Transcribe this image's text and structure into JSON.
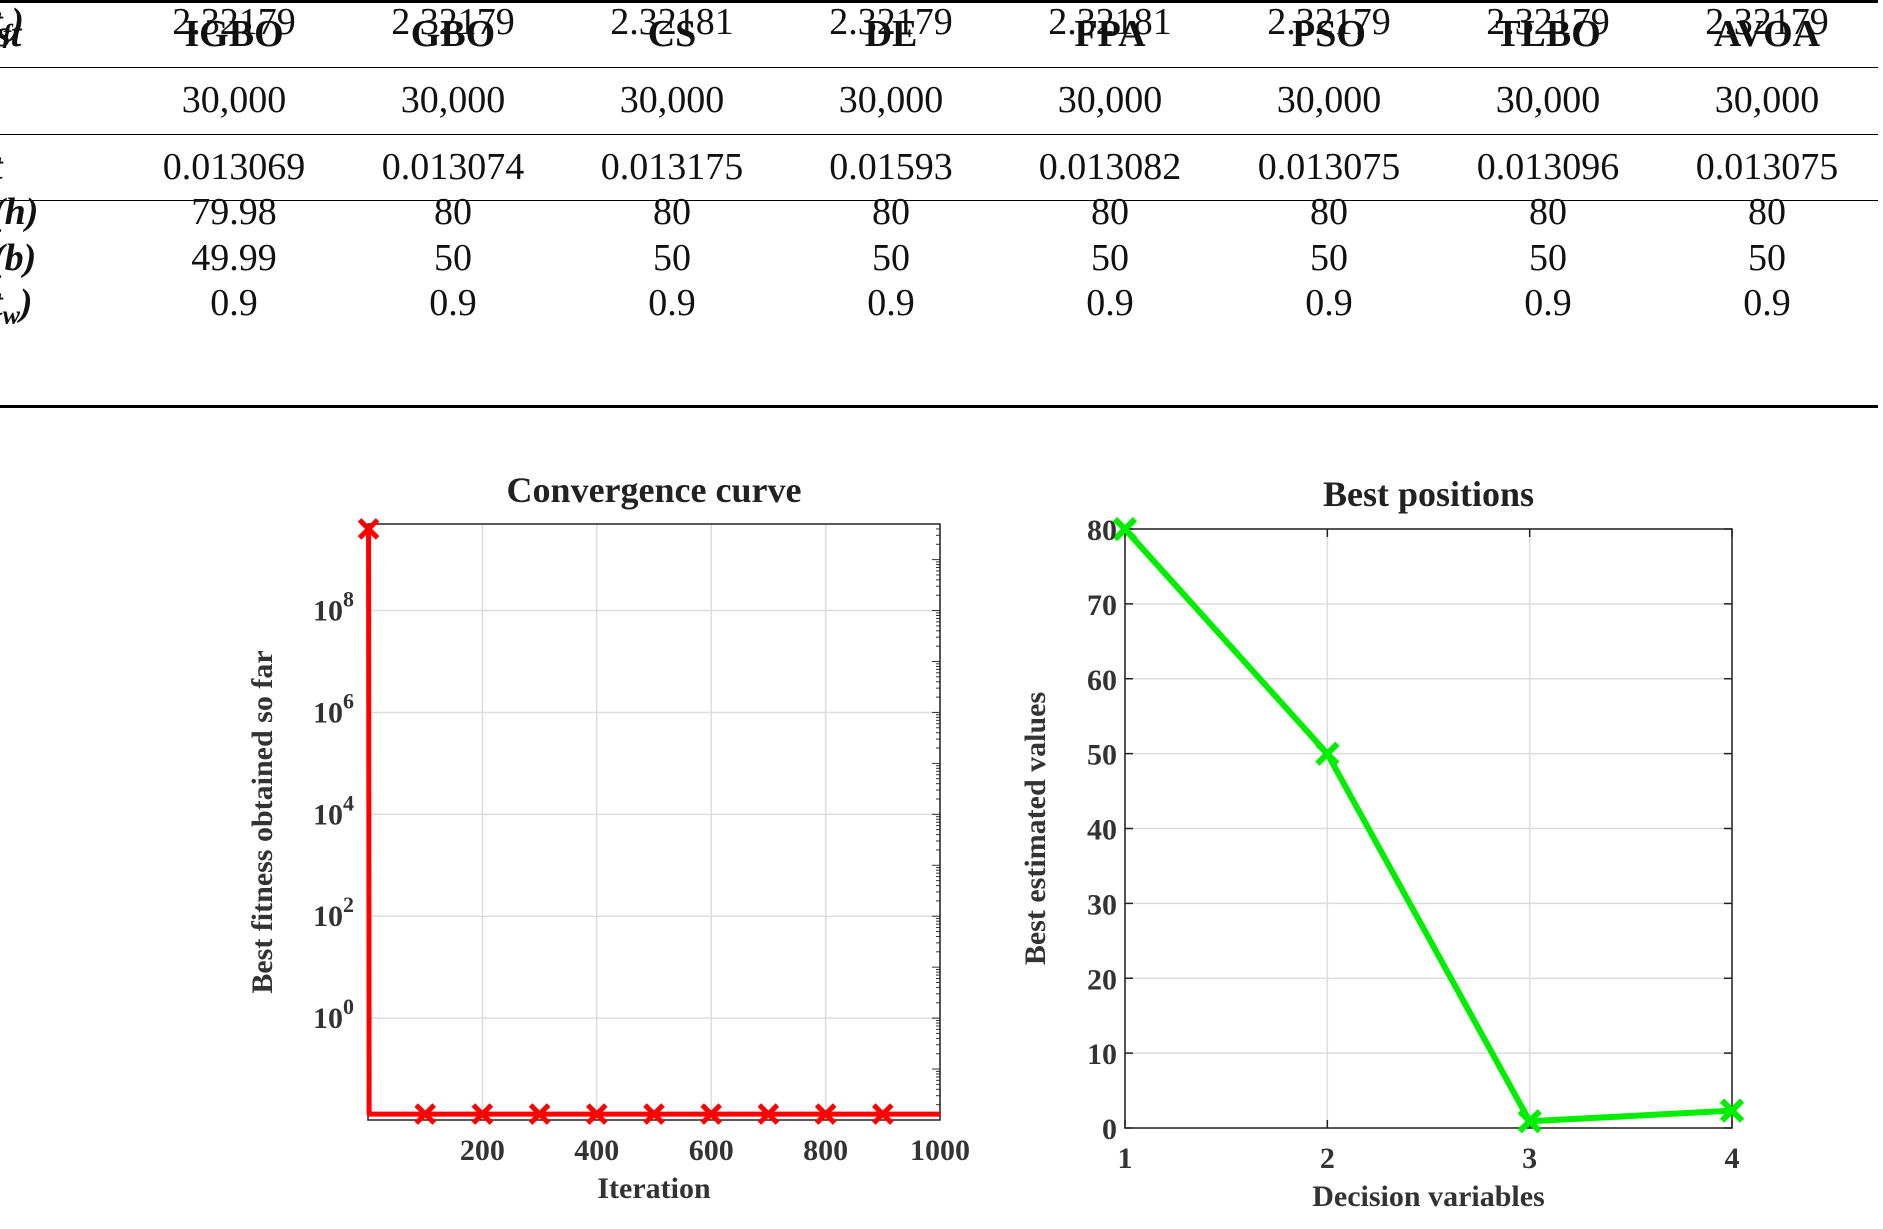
{
  "table": {
    "corner": "st",
    "columns": [
      "IGBO",
      "GBO",
      "CS",
      "DE",
      "FPA",
      "PSO",
      "TLBO",
      "AVOA"
    ],
    "rows": [
      {
        "label": "",
        "values": [
          "30,000",
          "30,000",
          "30,000",
          "30,000",
          "30,000",
          "30,000",
          "30,000",
          "30,000"
        ]
      },
      {
        "label": "t",
        "values": [
          "0.013069",
          "0.013074",
          "0.013175",
          "0.01593",
          "0.013082",
          "0.013075",
          "0.013096",
          "0.013075"
        ]
      },
      {
        "label": "(h)",
        "values": [
          "79.98",
          "80",
          "80",
          "80",
          "80",
          "80",
          "80",
          "80"
        ]
      },
      {
        "label": "(b)",
        "values": [
          "49.99",
          "50",
          "50",
          "50",
          "50",
          "50",
          "50",
          "50"
        ]
      },
      {
        "label": "t_w)",
        "values": [
          "0.9",
          "0.9",
          "0.9",
          "0.9",
          "0.9",
          "0.9",
          "0.9",
          "0.9"
        ]
      },
      {
        "label": "t_f)",
        "values": [
          "2.32179",
          "2.32179",
          "2.32181",
          "2.32179",
          "2.32181",
          "2.32179",
          "2.32179",
          "2.32179"
        ]
      }
    ]
  },
  "chart_data": [
    {
      "type": "line",
      "title": "Convergence curve",
      "xlabel": "Iteration",
      "ylabel": "Best fitness obtained so far",
      "yscale": "log",
      "xlim": [
        0,
        1000
      ],
      "ylim": [
        0.01,
        5000000000
      ],
      "xticks": [
        200,
        400,
        600,
        800,
        1000
      ],
      "yticks": [
        1,
        100,
        10000,
        1000000,
        100000000
      ],
      "ytick_labels": [
        {
          "base": "10",
          "exp": "0"
        },
        {
          "base": "10",
          "exp": "2"
        },
        {
          "base": "10",
          "exp": "4"
        },
        {
          "base": "10",
          "exp": "6"
        },
        {
          "base": "10",
          "exp": "8"
        }
      ],
      "grid": true,
      "color": "#ff0000",
      "series": [
        {
          "x": [
            1,
            2,
            100,
            200,
            300,
            400,
            500,
            600,
            700,
            800,
            900,
            1000
          ],
          "y": [
            4000000000,
            0.013069,
            0.013069,
            0.013069,
            0.013069,
            0.013069,
            0.013069,
            0.013069,
            0.013069,
            0.013069,
            0.013069,
            0.013069
          ],
          "markers_at": [
            1,
            100,
            200,
            300,
            400,
            500,
            600,
            700,
            800,
            900
          ]
        }
      ]
    },
    {
      "type": "line",
      "title": "Best positions",
      "xlabel": "Decision variables",
      "ylabel": "Best estimated values",
      "xlim": [
        1,
        4
      ],
      "ylim": [
        0,
        80
      ],
      "xticks": [
        1,
        2,
        3,
        4
      ],
      "yticks": [
        0,
        10,
        20,
        30,
        40,
        50,
        60,
        70,
        80
      ],
      "grid": true,
      "color": "#00ee00",
      "series": [
        {
          "x": [
            1,
            2,
            3,
            4
          ],
          "y": [
            79.98,
            49.99,
            0.9,
            2.32179
          ]
        }
      ]
    }
  ]
}
